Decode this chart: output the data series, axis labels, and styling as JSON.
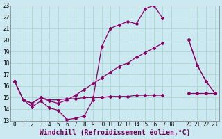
{
  "bg_color": "#cce8f0",
  "grid_color": "#aad8cc",
  "line_color": "#880066",
  "xlabel": "Windchill (Refroidissement éolien,°C)",
  "xlim": [
    -0.5,
    23.5
  ],
  "ylim": [
    13,
    23
  ],
  "yticks": [
    13,
    14,
    15,
    16,
    17,
    18,
    19,
    20,
    21,
    22,
    23
  ],
  "xticks": [
    0,
    1,
    2,
    3,
    4,
    5,
    6,
    7,
    8,
    9,
    10,
    11,
    12,
    13,
    14,
    15,
    16,
    17,
    18,
    20,
    21,
    22,
    23
  ],
  "line1_x": [
    0,
    1,
    2,
    3,
    4,
    5,
    6,
    7,
    8,
    9,
    10,
    11,
    12,
    13,
    14,
    15,
    16,
    17,
    18,
    20,
    21,
    22,
    23
  ],
  "line1_y": [
    16.4,
    14.8,
    14.2,
    14.7,
    14.1,
    13.9,
    13.1,
    13.2,
    13.4,
    14.8,
    19.4,
    21.0,
    21.3,
    21.6,
    21.4,
    22.7,
    23.0,
    21.9,
    null,
    20.0,
    17.8,
    16.4,
    15.4
  ],
  "line2_x": [
    0,
    1,
    2,
    3,
    4,
    5,
    6,
    7,
    8,
    9,
    10,
    11,
    12,
    13,
    14,
    15,
    16,
    17,
    18,
    20,
    21,
    22,
    23
  ],
  "line2_y": [
    16.4,
    14.8,
    14.5,
    15.0,
    14.7,
    14.5,
    14.8,
    15.2,
    15.7,
    16.2,
    16.7,
    17.2,
    17.7,
    18.0,
    18.5,
    18.9,
    19.3,
    19.7,
    null,
    20.0,
    17.8,
    16.4,
    15.4
  ],
  "line3_x": [
    0,
    1,
    2,
    3,
    4,
    5,
    6,
    7,
    8,
    9,
    10,
    11,
    12,
    13,
    14,
    15,
    16,
    17,
    18,
    20,
    21,
    22,
    23
  ],
  "line3_y": [
    16.4,
    14.8,
    14.5,
    15.0,
    14.8,
    14.8,
    14.9,
    14.9,
    15.0,
    15.0,
    15.0,
    15.1,
    15.1,
    15.1,
    15.2,
    15.2,
    15.2,
    15.2,
    null,
    15.4,
    15.4,
    15.4,
    15.4
  ],
  "marker": "D",
  "markersize": 2.0,
  "linewidth": 0.9,
  "xlabel_fontsize": 7,
  "tick_fontsize": 5.5
}
